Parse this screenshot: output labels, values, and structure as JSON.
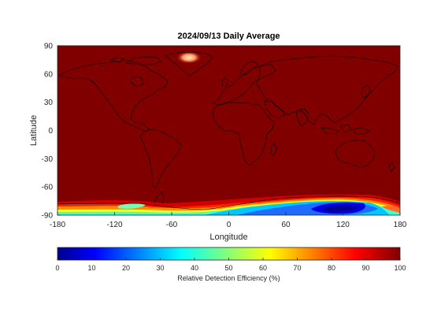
{
  "figure": {
    "title": "2024/09/13 Daily Average"
  },
  "map": {
    "projection": "equirectangular",
    "lon_range": [
      -180,
      180
    ],
    "lat_range": [
      -90,
      90
    ],
    "xlabel": "Longitude",
    "ylabel": "Latitude",
    "xticks": [
      -180,
      -120,
      -60,
      0,
      60,
      120,
      180
    ],
    "yticks": [
      -90,
      -60,
      -30,
      0,
      30,
      60,
      90
    ],
    "field": "Relative Detection Efficiency",
    "background_value_percent": 98,
    "low_efficiency_regions": [
      {
        "region": "Antarctica",
        "min_value_percent": 5,
        "lon_of_minimum": 120
      },
      {
        "region": "Greenland interior",
        "min_value_percent": 80
      }
    ]
  },
  "colorbar": {
    "label": "Relative Detection Efficiency (%)",
    "ticks": [
      0,
      10,
      20,
      30,
      40,
      50,
      60,
      70,
      80,
      90,
      100
    ],
    "colormap": "jet",
    "range": [
      0,
      100
    ]
  },
  "colors": {
    "ocean_land_max": "#800000",
    "jet_low": "#00008f",
    "jet_high": "#800000"
  }
}
